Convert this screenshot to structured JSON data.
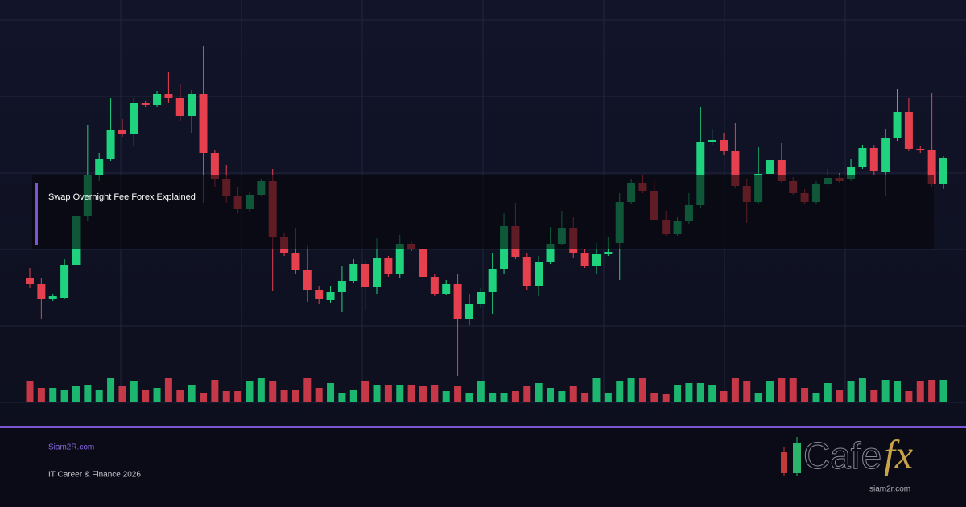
{
  "title": "Swap Overnight Fee Forex Explained",
  "site": "Siam2R.com",
  "tagline": "IT Career & Finance 2026",
  "logo": {
    "word": "Cafe",
    "accent": "fx",
    "domain": "siam2r.com"
  },
  "chart_data": {
    "type": "candlestick",
    "up_color": "#1fd37e",
    "down_color": "#e6404f",
    "grid": true,
    "ylim": [
      0,
      500
    ],
    "yticks": [
      0,
      95,
      190,
      285,
      380,
      475
    ],
    "y2lim": [
      0,
      40
    ],
    "open": [
      155,
      147,
      128,
      130,
      171,
      232,
      282,
      303,
      338,
      334,
      372,
      369,
      383,
      378,
      356,
      383,
      310,
      277,
      256,
      240,
      258,
      275,
      205,
      185,
      165,
      140,
      127,
      137,
      151,
      172,
      143,
      179,
      159,
      197,
      190,
      156,
      135,
      147,
      104,
      122,
      137,
      166,
      219,
      181,
      144,
      175,
      197,
      217,
      185,
      170,
      184,
      198,
      249,
      273,
      263,
      227,
      209,
      225,
      245,
      323,
      326,
      312,
      269,
      249,
      284,
      301,
      275,
      260,
      249,
      271,
      279,
      278,
      293,
      316,
      286,
      328,
      361,
      315,
      313,
      271
    ],
    "high": [
      167,
      155,
      135,
      178,
      255,
      345,
      310,
      378,
      352,
      378,
      375,
      387,
      410,
      396,
      388,
      443,
      313,
      295,
      268,
      262,
      278,
      290,
      210,
      217,
      195,
      145,
      145,
      170,
      178,
      178,
      204,
      182,
      208,
      200,
      242,
      160,
      152,
      160,
      135,
      142,
      185,
      235,
      248,
      185,
      182,
      218,
      238,
      230,
      190,
      198,
      205,
      260,
      278,
      283,
      275,
      238,
      230,
      260,
      367,
      340,
      335,
      347,
      278,
      317,
      305,
      322,
      280,
      265,
      275,
      290,
      285,
      303,
      320,
      320,
      340,
      390,
      378,
      318,
      384,
      306
    ],
    "low": [
      142,
      103,
      126,
      128,
      165,
      225,
      275,
      300,
      330,
      318,
      367,
      367,
      372,
      350,
      335,
      248,
      268,
      248,
      235,
      236,
      256,
      138,
      182,
      160,
      125,
      122,
      124,
      112,
      148,
      115,
      135,
      156,
      155,
      188,
      154,
      132,
      133,
      33,
      96,
      117,
      110,
      160,
      178,
      140,
      132,
      172,
      195,
      180,
      167,
      160,
      182,
      152,
      246,
      260,
      225,
      207,
      207,
      222,
      242,
      320,
      308,
      267,
      223,
      247,
      282,
      272,
      258,
      247,
      246,
      269,
      273,
      275,
      290,
      283,
      257,
      325,
      312,
      310,
      268,
      265
    ],
    "close": [
      147,
      128,
      132,
      171,
      232,
      283,
      303,
      338,
      334,
      372,
      369,
      383,
      378,
      356,
      383,
      310,
      277,
      256,
      240,
      258,
      275,
      205,
      185,
      165,
      140,
      128,
      137,
      151,
      172,
      143,
      179,
      159,
      197,
      190,
      156,
      135,
      147,
      104,
      122,
      137,
      166,
      219,
      181,
      144,
      175,
      197,
      217,
      185,
      170,
      184,
      187,
      249,
      273,
      263,
      227,
      209,
      225,
      245,
      323,
      326,
      312,
      269,
      249,
      284,
      301,
      275,
      260,
      249,
      271,
      279,
      275,
      293,
      316,
      287,
      328,
      361,
      315,
      313,
      271,
      304
    ],
    "volume": [
      26,
      18,
      18,
      16,
      20,
      22,
      16,
      30,
      20,
      26,
      16,
      18,
      30,
      16,
      22,
      12,
      28,
      14,
      14,
      26,
      30,
      26,
      16,
      16,
      30,
      18,
      24,
      12,
      16,
      26,
      22,
      22,
      22,
      22,
      20,
      22,
      14,
      20,
      12,
      26,
      12,
      12,
      14,
      20,
      24,
      18,
      14,
      20,
      12,
      30,
      12,
      26,
      30,
      30,
      12,
      10,
      22,
      24,
      24,
      22,
      14,
      30,
      26,
      12,
      26,
      30,
      30,
      18,
      12,
      24,
      16,
      26,
      30,
      16,
      28,
      26,
      14,
      26,
      28,
      28
    ]
  }
}
